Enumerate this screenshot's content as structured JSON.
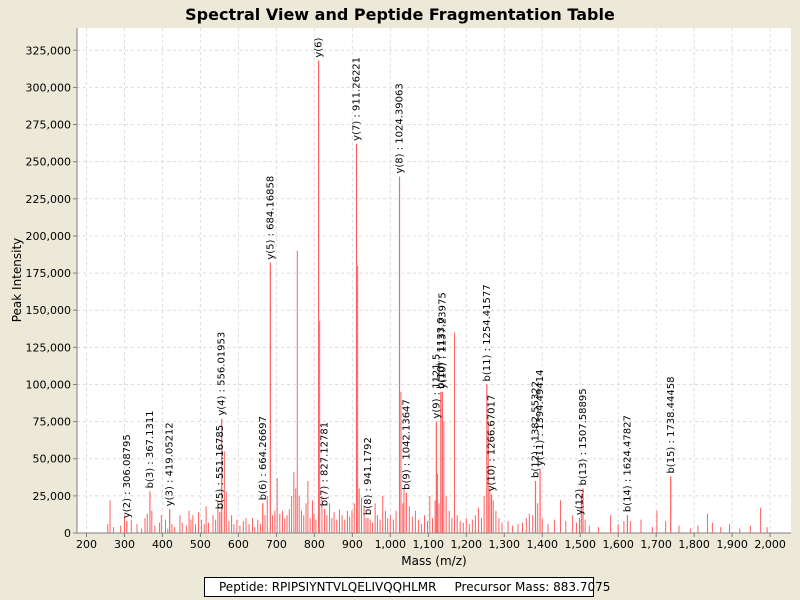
{
  "chart_data": {
    "type": "bar",
    "title": "Spectral View and Peptide Fragmentation Table",
    "xlabel": "Mass (m/z)",
    "ylabel": "Peak Intensity",
    "xlim": [
      175,
      2055
    ],
    "ylim": [
      0,
      340000
    ],
    "x_ticks": [
      200,
      300,
      400,
      500,
      600,
      700,
      800,
      900,
      1000,
      1100,
      1200,
      1300,
      1400,
      1500,
      1600,
      1700,
      1800,
      1900,
      2000
    ],
    "x_tick_labels": [
      "200",
      "300",
      "400",
      "500",
      "600",
      "700",
      "800",
      "900",
      "1,000",
      "1,100",
      "1,200",
      "1,300",
      "1,400",
      "1,500",
      "1,600",
      "1,700",
      "1,800",
      "1,900",
      "2,000"
    ],
    "y_ticks": [
      0,
      25000,
      50000,
      75000,
      100000,
      125000,
      150000,
      175000,
      200000,
      225000,
      250000,
      275000,
      300000,
      325000
    ],
    "y_tick_labels": [
      "0",
      "25,000",
      "50,000",
      "75,000",
      "100,000",
      "125,000",
      "150,000",
      "175,000",
      "200,000",
      "225,000",
      "250,000",
      "275,000",
      "300,000",
      "325,000"
    ],
    "grid": true,
    "series_color": "#ff6060",
    "annotated_peaks": [
      {
        "mz": 306.08795,
        "intensity": 8000,
        "label": "y(2) : 306.08795"
      },
      {
        "mz": 367.1311,
        "intensity": 28000,
        "label": "b(3) : 367.1311"
      },
      {
        "mz": 419.05212,
        "intensity": 16000,
        "label": "y(3) : 419.05212"
      },
      {
        "mz": 551.16785,
        "intensity": 14000,
        "label": "b(5) : 551.16785"
      },
      {
        "mz": 556.01953,
        "intensity": 77000,
        "label": "y(4) : 556.01953"
      },
      {
        "mz": 664.26697,
        "intensity": 20000,
        "label": "b(6) : 664.26697"
      },
      {
        "mz": 684.16858,
        "intensity": 182000,
        "label": "y(5) : 684.16858"
      },
      {
        "mz": 811.2,
        "intensity": 318000,
        "label": "y(6)"
      },
      {
        "mz": 827.12781,
        "intensity": 16000,
        "label": "b(7) : 827.12781"
      },
      {
        "mz": 911.26221,
        "intensity": 262000,
        "label": "y(7) : 911.26221"
      },
      {
        "mz": 941.1792,
        "intensity": 10000,
        "label": "b(8) : 941.1792"
      },
      {
        "mz": 1024.39063,
        "intensity": 240000,
        "label": "y(8) : 1024.39063"
      },
      {
        "mz": 1042.13647,
        "intensity": 27000,
        "label": "b(9) : 1042.13647"
      },
      {
        "mz": 1121.5,
        "intensity": 75000,
        "label": "y(9) : 1121.5"
      },
      {
        "mz": 1133.0,
        "intensity": 95000,
        "label": "b(10) : 1133.0"
      },
      {
        "mz": 1137.23975,
        "intensity": 95000,
        "label": "y(10) : 1137.23975"
      },
      {
        "mz": 1254.41577,
        "intensity": 100000,
        "label": "b(11) : 1254.41577"
      },
      {
        "mz": 1266.67017,
        "intensity": 26000,
        "label": "y(10) : 1266.67017"
      },
      {
        "mz": 1382.55322,
        "intensity": 35000,
        "label": "b(12) : 1382.55322"
      },
      {
        "mz": 1394.49414,
        "intensity": 43000,
        "label": "y(11) : 1394.49414"
      },
      {
        "mz": 1498.2,
        "intensity": 10000,
        "label": "y(12)"
      },
      {
        "mz": 1507.58895,
        "intensity": 30000,
        "label": "b(13) : 1507.58895"
      },
      {
        "mz": 1624.47827,
        "intensity": 12000,
        "label": "b(14) : 1624.47827"
      },
      {
        "mz": 1738.44458,
        "intensity": 38000,
        "label": "b(15) : 1738.44458"
      }
    ],
    "peaks": [
      [
        256,
        6000
      ],
      [
        262,
        22000
      ],
      [
        271,
        4000
      ],
      [
        290,
        5000
      ],
      [
        300,
        12000
      ],
      [
        306,
        8000
      ],
      [
        318,
        9000
      ],
      [
        333,
        6000
      ],
      [
        345,
        3000
      ],
      [
        354,
        10000
      ],
      [
        360,
        13000
      ],
      [
        367,
        28000
      ],
      [
        372,
        15000
      ],
      [
        380,
        5000
      ],
      [
        392,
        7000
      ],
      [
        397,
        12000
      ],
      [
        408,
        9000
      ],
      [
        414,
        3000
      ],
      [
        419,
        16000
      ],
      [
        425,
        6000
      ],
      [
        432,
        4000
      ],
      [
        446,
        12000
      ],
      [
        452,
        7000
      ],
      [
        463,
        5000
      ],
      [
        470,
        15000
      ],
      [
        475,
        9000
      ],
      [
        480,
        12000
      ],
      [
        487,
        6000
      ],
      [
        495,
        14000
      ],
      [
        503,
        9000
      ],
      [
        510,
        6000
      ],
      [
        515,
        18000
      ],
      [
        521,
        7000
      ],
      [
        533,
        12000
      ],
      [
        540,
        9000
      ],
      [
        546,
        22000
      ],
      [
        551,
        14000
      ],
      [
        556,
        77000
      ],
      [
        563,
        55000
      ],
      [
        568,
        28000
      ],
      [
        575,
        8000
      ],
      [
        582,
        12000
      ],
      [
        588,
        6000
      ],
      [
        596,
        9000
      ],
      [
        604,
        5000
      ],
      [
        613,
        8000
      ],
      [
        620,
        10000
      ],
      [
        628,
        6000
      ],
      [
        637,
        10000
      ],
      [
        643,
        4000
      ],
      [
        651,
        9000
      ],
      [
        658,
        6000
      ],
      [
        664,
        20000
      ],
      [
        670,
        12000
      ],
      [
        676,
        25000
      ],
      [
        684,
        182000
      ],
      [
        690,
        12000
      ],
      [
        696,
        15000
      ],
      [
        702,
        37000
      ],
      [
        709,
        13000
      ],
      [
        716,
        15000
      ],
      [
        722,
        10000
      ],
      [
        728,
        12000
      ],
      [
        734,
        16000
      ],
      [
        740,
        25000
      ],
      [
        746,
        41000
      ],
      [
        751,
        30000
      ],
      [
        755,
        190000
      ],
      [
        760,
        25000
      ],
      [
        766,
        15000
      ],
      [
        772,
        12000
      ],
      [
        778,
        20000
      ],
      [
        783,
        35000
      ],
      [
        789,
        10000
      ],
      [
        795,
        22000
      ],
      [
        799,
        13000
      ],
      [
        804,
        9000
      ],
      [
        811,
        318000
      ],
      [
        814,
        143000
      ],
      [
        820,
        25000
      ],
      [
        827,
        16000
      ],
      [
        833,
        12000
      ],
      [
        840,
        20000
      ],
      [
        846,
        10000
      ],
      [
        852,
        14000
      ],
      [
        859,
        9000
      ],
      [
        866,
        16000
      ],
      [
        873,
        12000
      ],
      [
        880,
        9000
      ],
      [
        887,
        15000
      ],
      [
        893,
        11000
      ],
      [
        899,
        15000
      ],
      [
        905,
        20000
      ],
      [
        911,
        262000
      ],
      [
        914,
        180000
      ],
      [
        918,
        30000
      ],
      [
        924,
        24000
      ],
      [
        931,
        18000
      ],
      [
        936,
        10000
      ],
      [
        941,
        10000
      ],
      [
        947,
        9000
      ],
      [
        953,
        7000
      ],
      [
        960,
        20000
      ],
      [
        966,
        12000
      ],
      [
        973,
        9000
      ],
      [
        980,
        25000
      ],
      [
        987,
        15000
      ],
      [
        993,
        10000
      ],
      [
        1000,
        12000
      ],
      [
        1008,
        9000
      ],
      [
        1015,
        15000
      ],
      [
        1024,
        240000
      ],
      [
        1028,
        95000
      ],
      [
        1033,
        20000
      ],
      [
        1036,
        30000
      ],
      [
        1042,
        27000
      ],
      [
        1050,
        18000
      ],
      [
        1058,
        11000
      ],
      [
        1066,
        15000
      ],
      [
        1074,
        9000
      ],
      [
        1082,
        6000
      ],
      [
        1090,
        12000
      ],
      [
        1098,
        8000
      ],
      [
        1104,
        25000
      ],
      [
        1111,
        10000
      ],
      [
        1118,
        22000
      ],
      [
        1121,
        75000
      ],
      [
        1124,
        40000
      ],
      [
        1128,
        20000
      ],
      [
        1133,
        95000
      ],
      [
        1137,
        95000
      ],
      [
        1141,
        75000
      ],
      [
        1147,
        25000
      ],
      [
        1155,
        15000
      ],
      [
        1162,
        10000
      ],
      [
        1169,
        135000
      ],
      [
        1176,
        12000
      ],
      [
        1184,
        8000
      ],
      [
        1192,
        7000
      ],
      [
        1200,
        10000
      ],
      [
        1208,
        6000
      ],
      [
        1216,
        9000
      ],
      [
        1224,
        12000
      ],
      [
        1232,
        17000
      ],
      [
        1240,
        10000
      ],
      [
        1247,
        25000
      ],
      [
        1254,
        100000
      ],
      [
        1258,
        75000
      ],
      [
        1262,
        30000
      ],
      [
        1266,
        26000
      ],
      [
        1271,
        22000
      ],
      [
        1278,
        15000
      ],
      [
        1286,
        10000
      ],
      [
        1294,
        7000
      ],
      [
        1310,
        8000
      ],
      [
        1322,
        5000
      ],
      [
        1336,
        6000
      ],
      [
        1348,
        7000
      ],
      [
        1358,
        10000
      ],
      [
        1366,
        13000
      ],
      [
        1375,
        12000
      ],
      [
        1382,
        35000
      ],
      [
        1388,
        20000
      ],
      [
        1394,
        43000
      ],
      [
        1400,
        10000
      ],
      [
        1415,
        6000
      ],
      [
        1432,
        9000
      ],
      [
        1448,
        22000
      ],
      [
        1462,
        8000
      ],
      [
        1480,
        12000
      ],
      [
        1490,
        7000
      ],
      [
        1498,
        10000
      ],
      [
        1503,
        25000
      ],
      [
        1507,
        30000
      ],
      [
        1513,
        9000
      ],
      [
        1524,
        5000
      ],
      [
        1548,
        4000
      ],
      [
        1580,
        12000
      ],
      [
        1600,
        6000
      ],
      [
        1615,
        8000
      ],
      [
        1624,
        12000
      ],
      [
        1632,
        8000
      ],
      [
        1660,
        9000
      ],
      [
        1690,
        4000
      ],
      [
        1702,
        15000
      ],
      [
        1725,
        8000
      ],
      [
        1738,
        38000
      ],
      [
        1760,
        5000
      ],
      [
        1790,
        3000
      ],
      [
        1810,
        5000
      ],
      [
        1835,
        13000
      ],
      [
        1848,
        7000
      ],
      [
        1870,
        4000
      ],
      [
        1893,
        6000
      ],
      [
        1920,
        3000
      ],
      [
        1948,
        5000
      ],
      [
        1975,
        17000
      ],
      [
        1992,
        4000
      ]
    ]
  },
  "legend": {
    "peptide": "Peptide: RPIPSIYNTVLQELIVQQHLMR",
    "precursor": "Precursor Mass: 883.7075"
  }
}
